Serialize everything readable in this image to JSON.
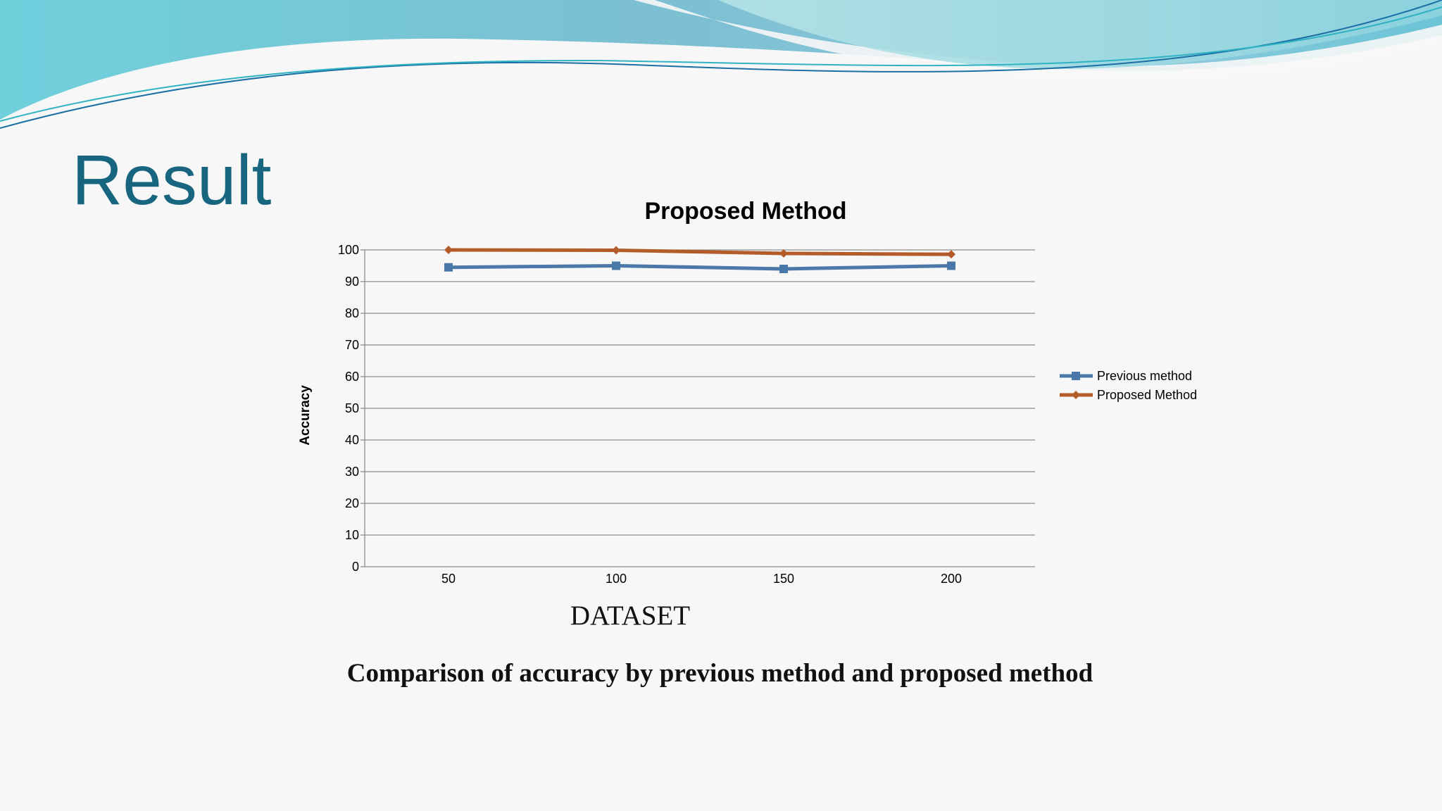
{
  "slide": {
    "title": "Result",
    "dataset_label": "DATASET",
    "caption": "Comparison of accuracy by previous method and proposed method"
  },
  "colors": {
    "title": "#17657f",
    "previous_series": "#4a78a8",
    "proposed_series": "#b35c2a",
    "gridline": "#8c8c8c"
  },
  "chart_data": {
    "type": "line",
    "title": "Proposed Method",
    "xlabel": "",
    "ylabel": "Accuracy",
    "categories": [
      "50",
      "100",
      "150",
      "200"
    ],
    "ylim": [
      0,
      100
    ],
    "yticks": [
      0,
      10,
      20,
      30,
      40,
      50,
      60,
      70,
      80,
      90,
      100
    ],
    "grid": true,
    "legend_position": "right",
    "series": [
      {
        "name": "Previous method",
        "marker": "square",
        "color": "#4a78a8",
        "values": [
          94.5,
          95,
          94,
          95
        ]
      },
      {
        "name": "Proposed Method",
        "marker": "diamond",
        "color": "#b35c2a",
        "values": [
          100,
          99.9,
          98.9,
          98.6
        ]
      }
    ]
  }
}
